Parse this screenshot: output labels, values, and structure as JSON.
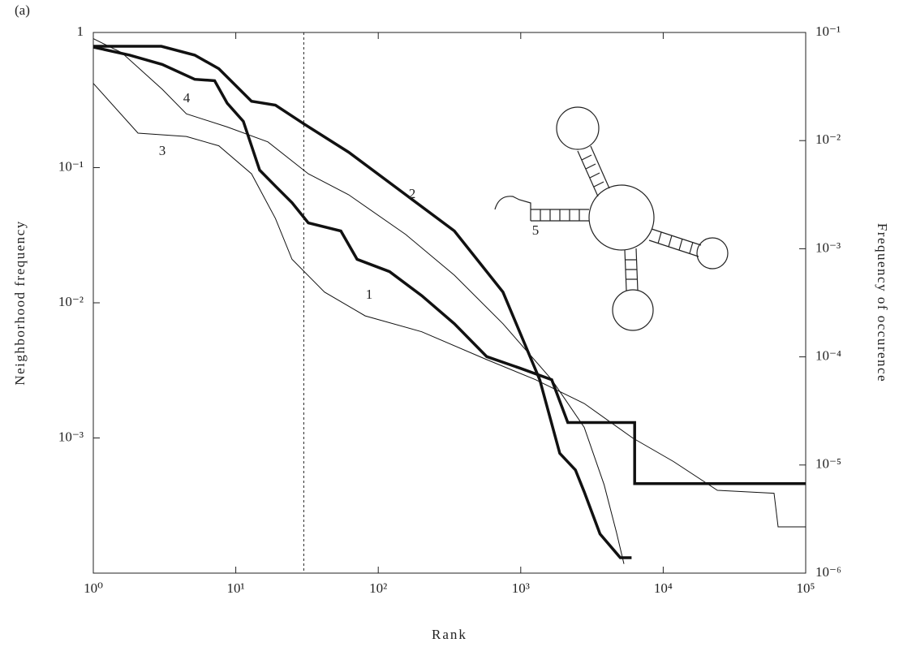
{
  "chart_data": {
    "type": "line",
    "panel_label": "(a)",
    "xlabel": "Rank",
    "ylabel": "Neighborhood frequency",
    "y2label": "Frequency of occurence",
    "xscale": "log",
    "yscale": "log",
    "y2scale": "log",
    "xlim": [
      1,
      100000
    ],
    "ylim": [
      0.0001,
      1
    ],
    "y2lim": [
      1e-06,
      0.1
    ],
    "xticks": [
      {
        "value": 1,
        "label": "10⁰"
      },
      {
        "value": 10,
        "label": "10¹"
      },
      {
        "value": 100,
        "label": "10²"
      },
      {
        "value": 1000,
        "label": "10³"
      },
      {
        "value": 10000,
        "label": "10⁴"
      },
      {
        "value": 100000,
        "label": "10⁵"
      }
    ],
    "yticks": [
      1,
      {
        "value": 0.1,
        "label": "10⁻¹"
      },
      {
        "value": 0.01,
        "label": "10⁻²"
      },
      {
        "value": 0.001,
        "label": "10⁻³"
      }
    ],
    "y2ticks": [
      {
        "value": 0.1,
        "label": "10⁻¹"
      },
      {
        "value": 0.01,
        "label": "10⁻²"
      },
      {
        "value": 0.001,
        "label": "10⁻³"
      },
      {
        "value": 0.0001,
        "label": "10⁻⁴"
      },
      {
        "value": 1e-05,
        "label": "10⁻⁵"
      },
      {
        "value": 1e-06,
        "label": "10⁻⁶"
      }
    ],
    "reference_x": 30,
    "annotations": [
      "1",
      "2",
      "3",
      "4",
      "5"
    ],
    "series": [
      {
        "name": "1",
        "color": "#111111",
        "width": 3.5,
        "x": [
          1,
          1.8,
          3.05,
          5.15,
          7.1,
          8.7,
          11.3,
          14.7,
          19,
          24.8,
          32.3,
          54.6,
          71,
          120,
          202,
          342,
          577,
          977,
          1650,
          2140,
          2790,
          6300,
          6300,
          100000
        ],
        "values": [
          0.78,
          0.68,
          0.58,
          0.45,
          0.44,
          0.3,
          0.22,
          0.096,
          0.073,
          0.055,
          0.039,
          0.034,
          0.021,
          0.017,
          0.0113,
          0.007,
          0.004,
          0.0033,
          0.0027,
          0.0013,
          0.0013,
          0.0013,
          0.00046,
          0.00046
        ]
      },
      {
        "name": "2",
        "color": "#111111",
        "width": 3.5,
        "x": [
          1,
          3,
          5.15,
          7.6,
          12.9,
          19,
          30.3,
          62,
          156,
          342,
          750,
          1360,
          1880,
          2420,
          2790,
          3600,
          5000,
          6000
        ],
        "values": [
          0.79,
          0.79,
          0.68,
          0.54,
          0.31,
          0.29,
          0.21,
          0.13,
          0.063,
          0.034,
          0.012,
          0.0027,
          0.00077,
          0.00058,
          0.0004,
          0.000195,
          0.00013,
          0.00013
        ]
      },
      {
        "name": "3",
        "color": "#111111",
        "width": 1,
        "x": [
          1,
          2.06,
          4.5,
          7.6,
          12.9,
          19,
          24.8,
          42,
          81,
          202,
          577,
          1270,
          2790,
          6100,
          11800,
          24000,
          60000,
          64000,
          100000
        ],
        "values": [
          0.42,
          0.18,
          0.17,
          0.145,
          0.09,
          0.042,
          0.021,
          0.012,
          0.008,
          0.0061,
          0.0038,
          0.0027,
          0.0018,
          0.001,
          0.00067,
          0.00041,
          0.00039,
          0.00022,
          0.00022
        ]
      },
      {
        "name": "4",
        "color": "#111111",
        "width": 1,
        "x": [
          1,
          1.58,
          3.05,
          4.5,
          8.7,
          16.8,
          32.3,
          62,
          156,
          342,
          750,
          1650,
          2790,
          3850,
          4700,
          5300
        ],
        "values": [
          0.9,
          0.71,
          0.38,
          0.25,
          0.2,
          0.155,
          0.09,
          0.063,
          0.032,
          0.016,
          0.007,
          0.0027,
          0.0012,
          0.00045,
          0.0002,
          0.000117
        ]
      }
    ]
  }
}
